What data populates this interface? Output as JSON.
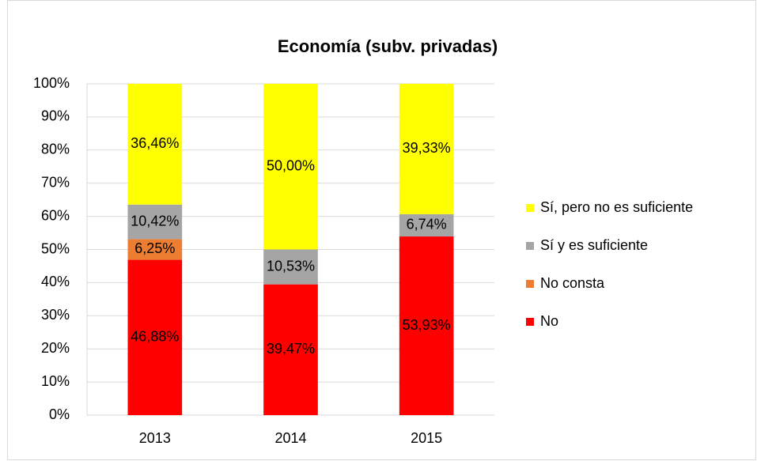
{
  "chart_data": {
    "type": "stacked_bar",
    "title": "Economía (subv. privadas)",
    "categories": [
      "2013",
      "2014",
      "2015"
    ],
    "series": [
      {
        "name": "No",
        "color": "#ff0000",
        "values": [
          46.88,
          39.47,
          53.93
        ],
        "value_labels": [
          "46,88%",
          "39,47%",
          "53,93%"
        ]
      },
      {
        "name": "No consta",
        "color": "#ed7d31",
        "values": [
          6.25,
          null,
          null
        ],
        "value_labels": [
          "6,25%",
          null,
          null
        ]
      },
      {
        "name": "Sí y es suficiente",
        "color": "#a5a5a5",
        "values": [
          10.42,
          10.53,
          6.74
        ],
        "value_labels": [
          "10,42%",
          "10,53%",
          "6,74%"
        ]
      },
      {
        "name": "Sí, pero no es suficiente",
        "color": "#ffff00",
        "values": [
          36.46,
          50.0,
          39.33
        ],
        "value_labels": [
          "36,46%",
          "50,00%",
          "39,33%"
        ]
      }
    ],
    "ylim": [
      0,
      100
    ],
    "yticks": [
      {
        "value": 0,
        "label": "0%"
      },
      {
        "value": 10,
        "label": "10%"
      },
      {
        "value": 20,
        "label": "20%"
      },
      {
        "value": 30,
        "label": "30%"
      },
      {
        "value": 40,
        "label": "40%"
      },
      {
        "value": 50,
        "label": "50%"
      },
      {
        "value": 60,
        "label": "60%"
      },
      {
        "value": 70,
        "label": "70%"
      },
      {
        "value": 80,
        "label": "80%"
      },
      {
        "value": 90,
        "label": "90%"
      },
      {
        "value": 100,
        "label": "100%"
      }
    ],
    "grid": true,
    "legend": "right"
  }
}
